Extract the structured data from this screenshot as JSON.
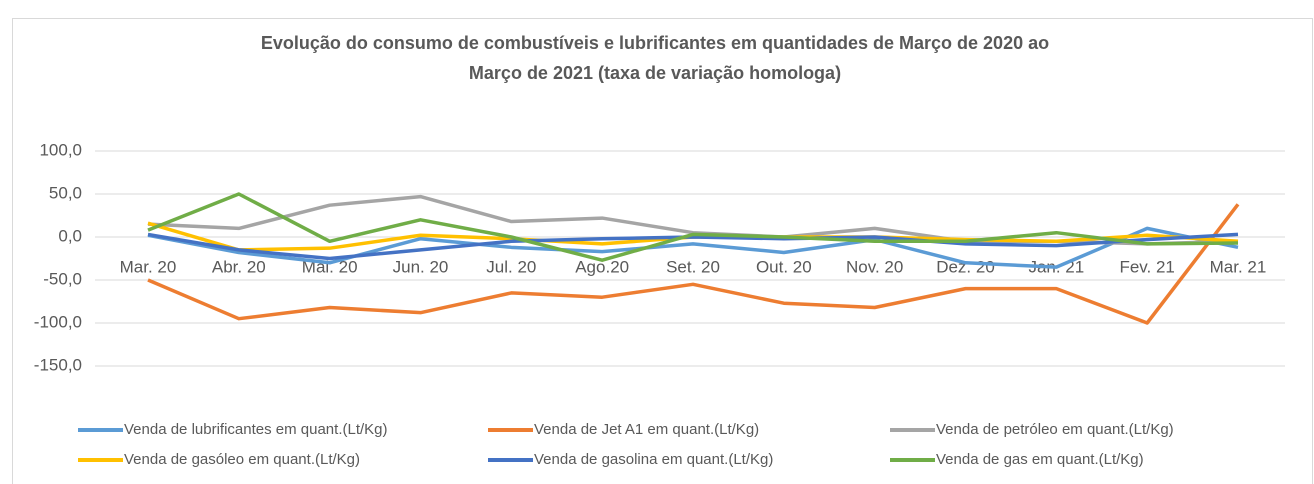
{
  "chart_data": {
    "type": "line",
    "title": [
      "Evolução do consumo de combustíveis e lubrificantes em quantidades de Março de 2020 ao",
      "Março de 2021 (taxa de variação homologa)"
    ],
    "categories": [
      "Mar. 20",
      "Abr. 20",
      "Mai. 20",
      "Jun. 20",
      "Jul. 20",
      "Ago.20",
      "Set. 20",
      "Out. 20",
      "Nov. 20",
      "Dez. 20",
      "Jan. 21",
      "Fev. 21",
      "Mar. 21"
    ],
    "series": [
      {
        "name": "Venda de lubrificantes em quant.(Lt/Kg)",
        "color": "#5b9bd5",
        "values": [
          2,
          -18,
          -30,
          -2,
          -12,
          -17,
          -8,
          -18,
          -3,
          -30,
          -35,
          10,
          -12
        ]
      },
      {
        "name": "Venda de Jet A1 em quant.(Lt/Kg)",
        "color": "#ed7d31",
        "values": [
          -50,
          -95,
          -82,
          -88,
          -65,
          -70,
          -55,
          -77,
          -82,
          -60,
          -60,
          -100,
          38
        ]
      },
      {
        "name": "Venda de petróleo em quant.(Lt/Kg)",
        "color": "#a5a5a5",
        "values": [
          15,
          10,
          37,
          47,
          18,
          22,
          5,
          0,
          10,
          -5,
          -5,
          -8,
          -5
        ]
      },
      {
        "name": "Venda de gasóleo em quant.(Lt/Kg)",
        "color": "#ffc000",
        "values": [
          16,
          -15,
          -13,
          2,
          -2,
          -8,
          0,
          0,
          0,
          -3,
          -5,
          2,
          -5
        ]
      },
      {
        "name": "Venda de gasolina em quant.(Lt/Kg)",
        "color": "#4472c4",
        "values": [
          3,
          -15,
          -25,
          -15,
          -5,
          -2,
          0,
          -2,
          0,
          -8,
          -10,
          -3,
          3
        ]
      },
      {
        "name": "Venda de gas em quant.(Lt/Kg)",
        "color": "#70ad47",
        "values": [
          8,
          50,
          -5,
          20,
          0,
          -27,
          3,
          0,
          -5,
          -5,
          5,
          -8,
          -7
        ]
      }
    ],
    "ylim": [
      -150,
      100
    ],
    "yticks": [
      {
        "value": -150,
        "label": "-150,0"
      },
      {
        "value": -100,
        "label": "-100,0"
      },
      {
        "value": -50,
        "label": "-50,0"
      },
      {
        "value": 0,
        "label": "0,0"
      },
      {
        "value": 50,
        "label": "50,0"
      },
      {
        "value": 100,
        "label": "100,0"
      }
    ],
    "grid": true,
    "legend": "bottom"
  }
}
